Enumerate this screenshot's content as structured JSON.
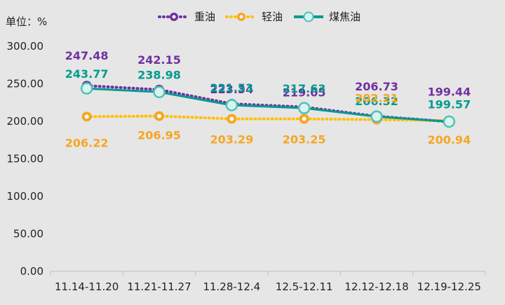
{
  "chart_data": {
    "type": "line",
    "unit_label": "单位：%",
    "categories": [
      "11.14-11.20",
      "11.21-11.27",
      "11.28-12.4",
      "12.5-12.11",
      "12.12-12.18",
      "12.19-12.25"
    ],
    "ylim": [
      0,
      300
    ],
    "yticks": [
      "0.00",
      "50.00",
      "100.00",
      "150.00",
      "200.00",
      "250.00",
      "300.00"
    ],
    "grid": false,
    "legend_position": "top",
    "series": [
      {
        "name": "重油",
        "values": [
          247.48,
          242.15,
          223.34,
          219.05,
          206.73,
          199.44
        ],
        "labels": [
          "247.48",
          "242.15",
          "223.34",
          "219.05",
          "206.73",
          "199.44"
        ],
        "color": "#7030A0",
        "style": "dotted"
      },
      {
        "name": "轻油",
        "values": [
          206.22,
          206.95,
          203.29,
          203.25,
          202.21,
          200.94
        ],
        "labels": [
          "206.22",
          "206.95",
          "203.29",
          "203.25",
          "202.21",
          "200.94"
        ],
        "color": "#F5A623",
        "line_color": "#FFC000",
        "style": "dotted"
      },
      {
        "name": "煤焦油",
        "values": [
          243.77,
          238.98,
          221.53,
          217.63,
          206.32,
          199.57
        ],
        "labels": [
          "243.77",
          "238.98",
          "221.53",
          "217.63",
          "206.32",
          "199.57"
        ],
        "color": "#009B8F",
        "style": "solid"
      }
    ]
  }
}
